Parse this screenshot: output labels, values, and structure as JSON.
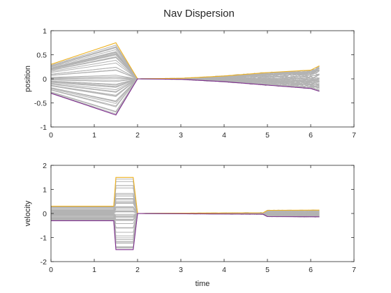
{
  "chart_data": [
    {
      "type": "line",
      "title": "Nav Dispersion",
      "xlabel": "",
      "ylabel": "position",
      "xlim": [
        0,
        7
      ],
      "ylim": [
        -1,
        1
      ],
      "xticks": [
        0,
        1,
        2,
        3,
        4,
        5,
        6,
        7
      ],
      "yticks": [
        -1,
        -0.5,
        0,
        0.5,
        1
      ],
      "grid": false,
      "legend": "none",
      "envelope": {
        "x": [
          0,
          1.5,
          2.0,
          3.0,
          4.0,
          5.0,
          6.0,
          6.2
        ],
        "upper": [
          0.3,
          0.75,
          0.0,
          0.01,
          0.06,
          0.13,
          0.18,
          0.27
        ],
        "lower": [
          -0.3,
          -0.75,
          0.0,
          -0.01,
          -0.06,
          -0.13,
          -0.2,
          -0.26
        ]
      },
      "series": [
        {
          "role": "upper-bound",
          "color": "#EDB120",
          "x": [
            0,
            1.5,
            2.0,
            3.0,
            4.0,
            5.0,
            6.0,
            6.2
          ],
          "values": [
            0.3,
            0.75,
            0.0,
            0.01,
            0.06,
            0.13,
            0.18,
            0.27
          ]
        },
        {
          "role": "lower-bound",
          "color": "#7E2F8E",
          "x": [
            0,
            1.5,
            2.0,
            3.0,
            4.0,
            5.0,
            6.0,
            6.2
          ],
          "values": [
            -0.3,
            -0.75,
            0.0,
            -0.01,
            -0.06,
            -0.13,
            -0.2,
            -0.26
          ]
        },
        {
          "role": "monte-carlo-runs",
          "color": "#b3b3b3",
          "count": 50
        }
      ]
    },
    {
      "type": "line",
      "title": "",
      "xlabel": "time",
      "ylabel": "velocity",
      "xlim": [
        0,
        7
      ],
      "ylim": [
        -2,
        2
      ],
      "xticks": [
        0,
        1,
        2,
        3,
        4,
        5,
        6,
        7
      ],
      "yticks": [
        -2,
        -1,
        0,
        1,
        2
      ],
      "grid": false,
      "legend": "none",
      "envelope": {
        "x": [
          0,
          1.45,
          1.5,
          1.9,
          2.0,
          4.9,
          5.0,
          6.2
        ],
        "upper": [
          0.3,
          0.3,
          1.5,
          1.5,
          0.0,
          0.03,
          0.13,
          0.14
        ],
        "lower": [
          -0.3,
          -0.3,
          -1.5,
          -1.5,
          0.0,
          -0.03,
          -0.13,
          -0.14
        ]
      },
      "series": [
        {
          "role": "upper-bound",
          "color": "#EDB120",
          "x": [
            0,
            1.45,
            1.5,
            1.9,
            2.0,
            4.9,
            5.0,
            6.2
          ],
          "values": [
            0.3,
            0.3,
            1.5,
            1.5,
            0.0,
            0.03,
            0.13,
            0.14
          ]
        },
        {
          "role": "lower-bound",
          "color": "#7E2F8E",
          "x": [
            0,
            1.45,
            1.5,
            1.9,
            2.0,
            4.9,
            5.0,
            6.2
          ],
          "values": [
            -0.3,
            -0.3,
            -1.5,
            -1.5,
            0.0,
            -0.03,
            -0.13,
            -0.14
          ]
        },
        {
          "role": "monte-carlo-runs",
          "color": "#b3b3b3",
          "count": 50
        }
      ]
    }
  ]
}
